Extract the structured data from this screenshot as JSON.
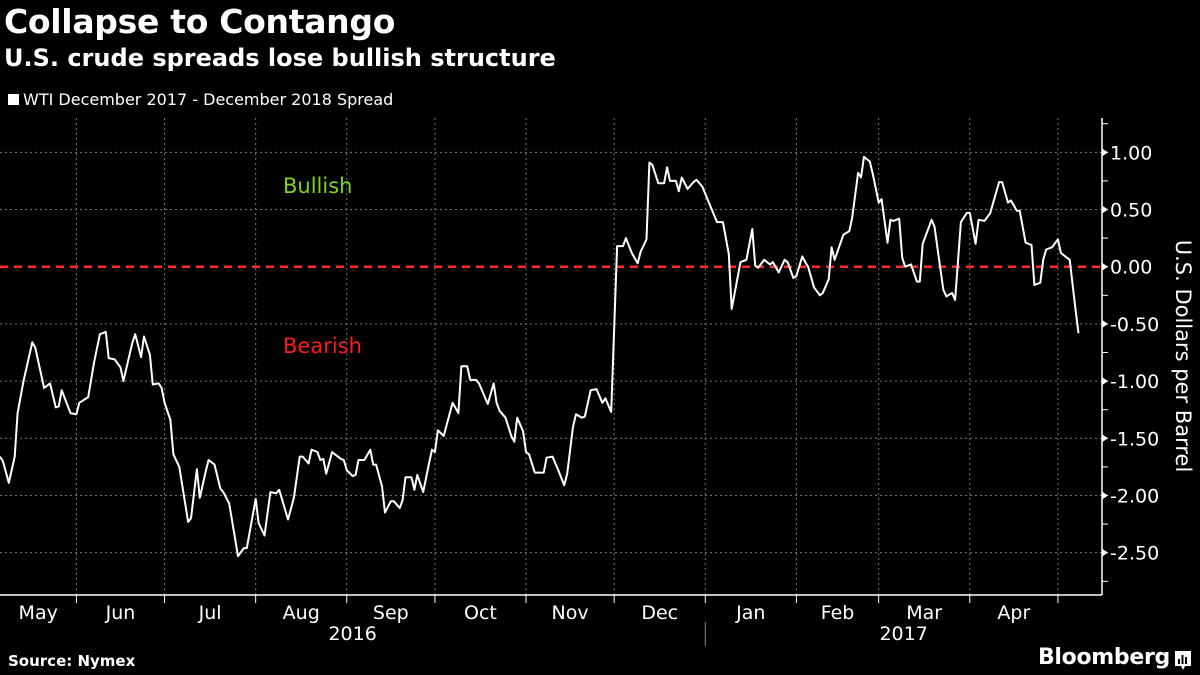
{
  "header": {
    "title": "Collapse to Contango",
    "subtitle": "U.S. crude spreads lose bullish structure"
  },
  "footer": {
    "source": "Source: Nymex",
    "brand": "Bloomberg"
  },
  "chart_data": {
    "type": "line",
    "title": "Collapse to Contango",
    "subtitle": "U.S. crude spreads lose bullish structure",
    "ylabel": "U.S. Dollars per Barrel",
    "y_axis_side": "right",
    "ylim": [
      -2.87,
      1.3
    ],
    "yticks": [
      1.0,
      0.5,
      0.0,
      -0.5,
      -1.0,
      -1.5,
      -2.0,
      -2.5
    ],
    "ytick_labels": [
      "1.00",
      "0.50",
      "0.00",
      "-0.50",
      "-1.00",
      "-1.50",
      "-2.00",
      "-2.50"
    ],
    "xlim": [
      "2016-05-06",
      "2017-05-16"
    ],
    "month_labels": [
      "May",
      "Jun",
      "Jul",
      "Aug",
      "Sep",
      "Oct",
      "Nov",
      "Dec",
      "Jan",
      "Feb",
      "Mar",
      "Apr"
    ],
    "year_labels": [
      "2016",
      "2017"
    ],
    "grid": true,
    "legend_placement": "top-left",
    "colors": {
      "line": "#ffffff",
      "zero_line": "#ff2a2a",
      "bullish": "#7ed321",
      "bearish": "#ff1a1a",
      "grid": "#777777"
    },
    "annotations": [
      {
        "text": "Bullish",
        "color": "#7ed321",
        "position": "above zero line"
      },
      {
        "text": "Bearish",
        "color": "#ff1a1a",
        "position": "below zero line"
      }
    ],
    "reference_line": {
      "y": 0,
      "style": "dashed",
      "color": "#ff2a2a"
    },
    "series": [
      {
        "name": "WTI December 2017 - December 2018 Spread",
        "color": "#ffffff",
        "x": [
          "2016-05-06",
          "2016-05-07",
          "2016-05-09",
          "2016-05-11",
          "2016-05-12",
          "2016-05-14",
          "2016-05-17",
          "2016-05-18",
          "2016-05-21",
          "2016-05-23",
          "2016-05-25",
          "2016-05-26",
          "2016-05-27",
          "2016-05-30",
          "2016-06-01",
          "2016-06-02",
          "2016-06-05",
          "2016-06-07",
          "2016-06-09",
          "2016-06-11",
          "2016-06-12",
          "2016-06-14",
          "2016-06-16",
          "2016-06-17",
          "2016-06-20",
          "2016-06-21",
          "2016-06-23",
          "2016-06-24",
          "2016-06-26",
          "2016-06-27",
          "2016-06-29",
          "2016-06-30",
          "2016-07-01",
          "2016-07-03",
          "2016-07-04",
          "2016-07-06",
          "2016-07-09",
          "2016-07-10",
          "2016-07-12",
          "2016-07-13",
          "2016-07-15",
          "2016-07-16",
          "2016-07-18",
          "2016-07-20",
          "2016-07-21",
          "2016-07-23",
          "2016-07-26",
          "2016-07-28",
          "2016-07-29",
          "2016-08-01",
          "2016-08-02",
          "2016-08-04",
          "2016-08-06",
          "2016-08-08",
          "2016-08-09",
          "2016-08-12",
          "2016-08-14",
          "2016-08-16",
          "2016-08-17",
          "2016-08-19",
          "2016-08-20",
          "2016-08-22",
          "2016-08-23",
          "2016-08-24",
          "2016-08-25",
          "2016-08-27",
          "2016-08-28",
          "2016-08-30",
          "2016-08-31",
          "2016-09-01",
          "2016-09-03",
          "2016-09-04",
          "2016-09-05",
          "2016-09-07",
          "2016-09-09",
          "2016-09-10",
          "2016-09-11",
          "2016-09-13",
          "2016-09-14",
          "2016-09-16",
          "2016-09-17",
          "2016-09-19",
          "2016-09-20",
          "2016-09-21",
          "2016-09-23",
          "2016-09-24",
          "2016-09-25",
          "2016-09-27",
          "2016-09-29",
          "2016-09-30",
          "2016-10-01",
          "2016-10-02",
          "2016-10-04",
          "2016-10-07",
          "2016-10-09",
          "2016-10-10",
          "2016-10-12",
          "2016-10-13",
          "2016-10-15",
          "2016-10-16",
          "2016-10-19",
          "2016-10-21",
          "2016-10-22",
          "2016-10-23",
          "2016-10-25",
          "2016-10-27",
          "2016-10-28",
          "2016-10-29",
          "2016-10-31",
          "2016-11-01",
          "2016-11-02",
          "2016-11-04",
          "2016-11-07",
          "2016-11-08",
          "2016-11-10",
          "2016-11-12",
          "2016-11-14",
          "2016-11-15",
          "2016-11-17",
          "2016-11-18",
          "2016-11-20",
          "2016-11-21",
          "2016-11-23",
          "2016-11-25",
          "2016-11-27",
          "2016-11-28",
          "2016-11-30",
          "2016-12-02",
          "2016-12-04",
          "2016-12-05",
          "2016-12-07",
          "2016-12-09",
          "2016-12-10",
          "2016-12-12",
          "2016-12-13",
          "2016-12-14",
          "2016-12-16",
          "2016-12-18",
          "2016-12-19",
          "2016-12-20",
          "2016-12-22",
          "2016-12-23",
          "2016-12-24",
          "2016-12-26",
          "2016-12-28",
          "2016-12-29",
          "2016-12-31",
          "2017-01-05",
          "2017-01-07",
          "2017-01-09",
          "2017-01-10",
          "2017-01-13",
          "2017-01-15",
          "2017-01-17",
          "2017-01-18",
          "2017-01-19",
          "2017-01-21",
          "2017-01-23",
          "2017-01-24",
          "2017-01-26",
          "2017-01-28",
          "2017-01-29",
          "2017-01-31",
          "2017-02-01",
          "2017-02-03",
          "2017-02-04",
          "2017-02-05",
          "2017-02-07",
          "2017-02-09",
          "2017-02-10",
          "2017-02-12",
          "2017-02-13",
          "2017-02-14",
          "2017-02-17",
          "2017-02-19",
          "2017-02-20",
          "2017-02-22",
          "2017-02-23",
          "2017-02-24",
          "2017-02-26",
          "2017-02-27",
          "2017-03-01",
          "2017-03-02",
          "2017-03-04",
          "2017-03-05",
          "2017-03-06",
          "2017-03-08",
          "2017-03-09",
          "2017-03-10",
          "2017-03-12",
          "2017-03-14",
          "2017-03-15",
          "2017-03-16",
          "2017-03-19",
          "2017-03-20",
          "2017-03-23",
          "2017-03-24",
          "2017-03-26",
          "2017-03-27",
          "2017-03-29",
          "2017-03-31",
          "2017-04-01",
          "2017-04-03",
          "2017-04-04",
          "2017-04-06",
          "2017-04-08",
          "2017-04-11",
          "2017-04-12",
          "2017-04-14",
          "2017-04-15",
          "2017-04-17",
          "2017-04-18",
          "2017-04-20",
          "2017-04-22",
          "2017-04-23",
          "2017-04-25",
          "2017-04-26",
          "2017-04-27",
          "2017-04-29",
          "2017-05-01",
          "2017-05-02",
          "2017-05-05",
          "2017-05-07",
          "2017-05-08"
        ],
        "y": [
          -1.66,
          -1.7,
          -1.89,
          -1.66,
          -1.28,
          -1.0,
          -0.66,
          -0.71,
          -1.06,
          -1.02,
          -1.23,
          -1.22,
          -1.08,
          -1.28,
          -1.29,
          -1.19,
          -1.14,
          -0.84,
          -0.59,
          -0.57,
          -0.8,
          -0.81,
          -0.88,
          -1.0,
          -0.67,
          -0.59,
          -0.79,
          -0.61,
          -0.77,
          -1.03,
          -1.02,
          -1.06,
          -1.19,
          -1.34,
          -1.64,
          -1.75,
          -2.23,
          -2.2,
          -1.77,
          -2.02,
          -1.79,
          -1.69,
          -1.73,
          -1.94,
          -1.97,
          -2.07,
          -2.53,
          -2.46,
          -2.46,
          -2.03,
          -2.24,
          -2.35,
          -1.97,
          -1.98,
          -1.95,
          -2.21,
          -2.02,
          -1.66,
          -1.66,
          -1.72,
          -1.6,
          -1.62,
          -1.69,
          -1.68,
          -1.81,
          -1.62,
          -1.64,
          -1.68,
          -1.69,
          -1.78,
          -1.83,
          -1.82,
          -1.69,
          -1.69,
          -1.6,
          -1.73,
          -1.73,
          -1.92,
          -2.15,
          -2.05,
          -2.05,
          -2.11,
          -2.04,
          -1.84,
          -1.84,
          -1.95,
          -1.82,
          -1.97,
          -1.72,
          -1.6,
          -1.62,
          -1.43,
          -1.48,
          -1.19,
          -1.28,
          -0.87,
          -0.87,
          -0.99,
          -0.99,
          -1.02,
          -1.2,
          -1.02,
          -1.19,
          -1.26,
          -1.32,
          -1.48,
          -1.53,
          -1.32,
          -1.44,
          -1.62,
          -1.64,
          -1.8,
          -1.8,
          -1.67,
          -1.66,
          -1.78,
          -1.91,
          -1.81,
          -1.4,
          -1.29,
          -1.32,
          -1.31,
          -1.08,
          -1.07,
          -1.19,
          -1.15,
          -1.27,
          0.18,
          0.18,
          0.25,
          0.12,
          0.03,
          0.13,
          0.24,
          0.91,
          0.89,
          0.73,
          0.73,
          0.87,
          0.75,
          0.75,
          0.66,
          0.78,
          0.68,
          0.74,
          0.76,
          0.7,
          0.39,
          0.39,
          0.11,
          -0.37,
          0.04,
          0.06,
          0.33,
          0.01,
          -0.01,
          0.06,
          0.02,
          0.04,
          -0.05,
          0.06,
          0.04,
          -0.1,
          -0.08,
          0.09,
          0.04,
          0.0,
          -0.18,
          -0.25,
          -0.23,
          -0.11,
          0.17,
          0.06,
          0.28,
          0.31,
          0.43,
          0.82,
          0.78,
          0.96,
          0.92,
          0.81,
          0.56,
          0.59,
          0.21,
          0.41,
          0.4,
          0.42,
          0.08,
          0.0,
          0.02,
          -0.13,
          -0.13,
          0.2,
          0.41,
          0.35,
          -0.2,
          -0.26,
          -0.23,
          -0.29,
          0.39,
          0.47,
          0.47,
          0.2,
          0.41,
          0.4,
          0.47,
          0.74,
          0.74,
          0.56,
          0.58,
          0.49,
          0.49,
          0.21,
          0.19,
          -0.16,
          -0.14,
          0.06,
          0.15,
          0.17,
          0.24,
          0.12,
          0.06,
          -0.38,
          -0.58
        ]
      }
    ]
  }
}
